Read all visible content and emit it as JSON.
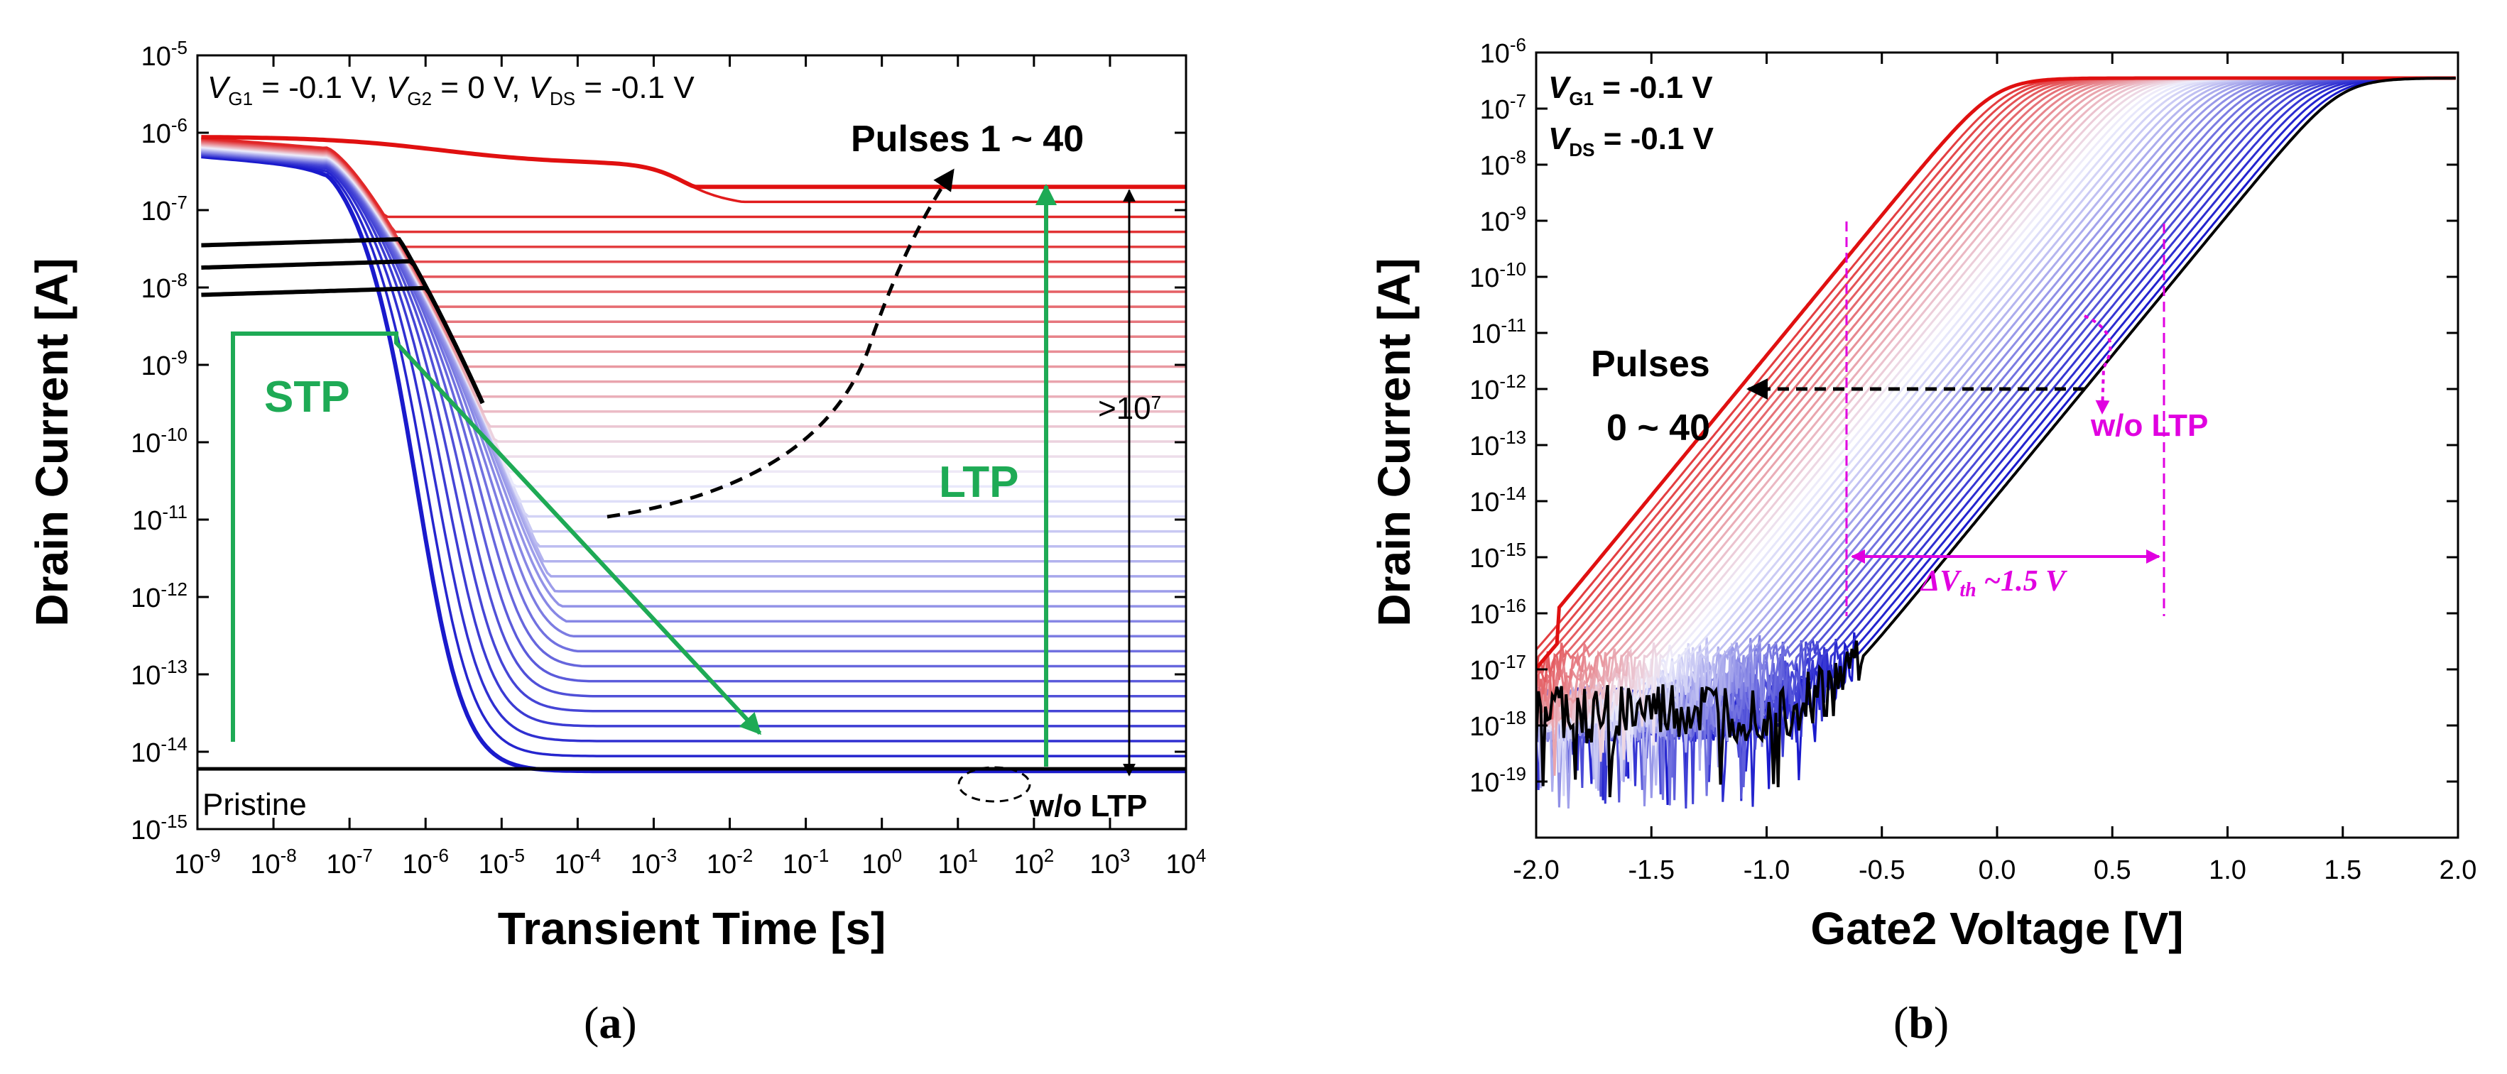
{
  "chart_data": [
    {
      "panel": "a",
      "type": "line",
      "panel_label": "a",
      "xlabel": "Transient Time [s]",
      "ylabel": "Drain Current [A]",
      "x_scale": "log",
      "y_scale": "log",
      "xlim_exp": [
        -9,
        4
      ],
      "ylim_exp": [
        -15,
        -5
      ],
      "x_ticks": [
        "10^-9",
        "10^-8",
        "10^-7",
        "10^-6",
        "10^-5",
        "10^-4",
        "10^-3",
        "10^-2",
        "10^-1",
        "10^0",
        "10^1",
        "10^2",
        "10^3",
        "10^4"
      ],
      "y_ticks": [
        "10^-15",
        "10^-14",
        "10^-13",
        "10^-12",
        "10^-11",
        "10^-10",
        "10^-9",
        "10^-8",
        "10^-7",
        "10^-6",
        "10^-5"
      ],
      "conditions": {
        "part1": "V",
        "sub1": "G1",
        "part2": " = -0.1 V, ",
        "part3": "V",
        "sub3": "G2",
        "part4": " = 0 V, ",
        "part5": "V",
        "sub5": "DS",
        "part6": " = -0.1 V"
      },
      "annotations": {
        "pulses": "Pulses 1 ~ 40",
        "stp": "STP",
        "ltp": "LTP",
        "ratio_base": ">10",
        "ratio_exp": "7",
        "pristine": "Pristine",
        "wo_ltp": "w/o LTP"
      },
      "series_summary": {
        "pristine_level_A": 6e-15,
        "pulse_count": 40,
        "initial_current_range_A": [
          5e-07,
          1e-06
        ],
        "final_current_range_A": [
          5e-15,
          2e-07
        ],
        "black_curves_initial_A": [
          3.5e-08,
          1.8e-08,
          8e-09
        ],
        "last_pulse_final_A": 2e-07
      },
      "colors": {
        "first": "#e01010",
        "mid": "#f0f0ff",
        "last": "#1a1acc",
        "stp_ltp": "#1eaa55"
      }
    },
    {
      "panel": "b",
      "type": "line",
      "panel_label": "b",
      "xlabel": "Gate2 Voltage [V]",
      "ylabel": "Drain Current [A]",
      "x_scale": "linear",
      "y_scale": "log",
      "xlim": [
        -2.0,
        2.0
      ],
      "ylim_exp": [
        -20,
        -6
      ],
      "x_ticks": [
        "-2.0",
        "-1.5",
        "-1.0",
        "-0.5",
        "0.0",
        "0.5",
        "1.0",
        "1.5",
        "2.0"
      ],
      "y_ticks": [
        "10^-19",
        "10^-18",
        "10^-17",
        "10^-16",
        "10^-15",
        "10^-14",
        "10^-13",
        "10^-12",
        "10^-11",
        "10^-10",
        "10^-9",
        "10^-8",
        "10^-7",
        "10^-6"
      ],
      "conditions": {
        "l1a": "V",
        "l1sub": "G1",
        "l1b": " = -0.1 V",
        "l2a": "V",
        "l2sub": "DS",
        "l2b": " = -0.1 V"
      },
      "annotations": {
        "pulses_line1": "Pulses",
        "pulses_line2": "0 ~ 40",
        "wo_ltp": "w/o LTP",
        "dvth_delta": "ΔV",
        "dvth_sub": "th",
        "dvth_val": " ~1.5 V"
      },
      "series_summary": {
        "pulse_count": 41,
        "vth_shift_V": 1.5,
        "vth_at_1pA_first_V": -1.1,
        "vth_at_1pA_last_V": 0.35,
        "on_current_A": 3.5e-07,
        "noise_floor_A": 1e-18
      },
      "colors": {
        "first": "#e01010",
        "last": "#1a1acc",
        "pristine": "#000000",
        "annotation": "#e000e0"
      }
    }
  ]
}
